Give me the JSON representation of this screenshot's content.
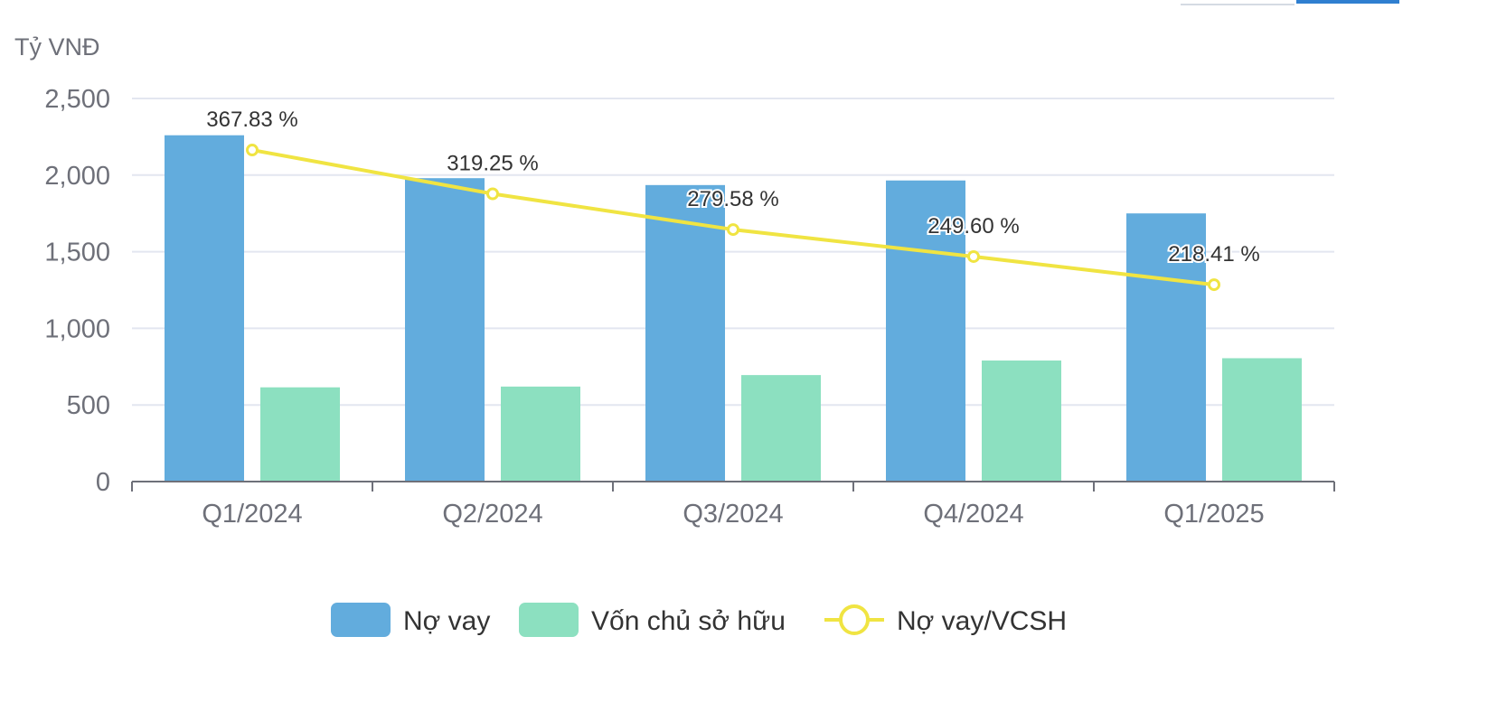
{
  "chart_data": {
    "type": "bar",
    "y_unit_label": "Tỷ VNĐ",
    "categories": [
      "Q1/2024",
      "Q2/2024",
      "Q3/2024",
      "Q4/2024",
      "Q1/2025"
    ],
    "ylim": [
      0,
      2500
    ],
    "yticks": [
      0,
      500,
      1000,
      1500,
      2000,
      2500
    ],
    "ytick_labels": [
      "0",
      "500",
      "1,000",
      "1,500",
      "2,000",
      "2,500"
    ],
    "grid": true,
    "legend_position": "bottom-center",
    "series": [
      {
        "name": "Nợ vay",
        "kind": "bar",
        "color": "#62acdd",
        "values": [
          2260,
          1980,
          1935,
          1965,
          1750
        ]
      },
      {
        "name": "Vốn chủ sở hữu",
        "kind": "bar",
        "color": "#8ce0c0",
        "values": [
          615,
          620,
          695,
          790,
          805
        ]
      },
      {
        "name": "Nợ vay/VCSH",
        "kind": "line",
        "color": "#f0e442",
        "values": [
          367.83,
          319.25,
          279.58,
          249.6,
          218.41
        ],
        "data_labels": [
          "367.83 %",
          "319.25 %",
          "279.58 %",
          "249.60 %",
          "218.41 %"
        ],
        "secondary_axis_range": [
          0,
          425
        ]
      }
    ]
  }
}
